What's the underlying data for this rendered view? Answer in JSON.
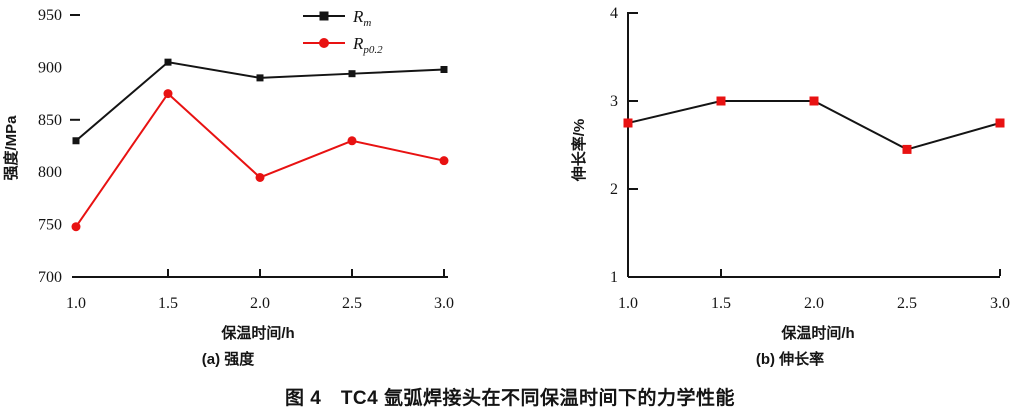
{
  "figure_caption": "图 4　TC4 氩弧焊接头在不同保温时间下的力学性能",
  "chart_data": [
    {
      "id": "a",
      "type": "line",
      "sub_caption": "(a) 强度",
      "xlabel": "保温时间/h",
      "ylabel": "强度/MPa",
      "x": [
        1.0,
        1.5,
        2.0,
        2.5,
        3.0
      ],
      "x_tick_labels": [
        "1.0",
        "1.5",
        "2.0",
        "2.5",
        "3.0"
      ],
      "x_tick_marks": [
        1.5,
        2.0,
        2.5,
        3.0
      ],
      "y_ticks": [
        700,
        750,
        800,
        850,
        900,
        950
      ],
      "y_dash_marks": [
        850,
        950
      ],
      "ylim": [
        700,
        950
      ],
      "xlim": [
        1.0,
        3.0
      ],
      "legend_position": "top-right-inside",
      "grid": false,
      "series": [
        {
          "label_base": "R",
          "label_sub": "m",
          "line_color": "#141414",
          "marker": "square",
          "marker_color": "#141414",
          "marker_size": 7,
          "values": [
            830,
            905,
            890,
            894,
            898
          ]
        },
        {
          "label_base": "R",
          "label_sub": "p0.2",
          "line_color": "#e81212",
          "marker": "circle",
          "marker_color": "#e81212",
          "marker_size": 9,
          "values": [
            748,
            875,
            795,
            830,
            811
          ]
        }
      ]
    },
    {
      "id": "b",
      "type": "line",
      "sub_caption": "(b) 伸长率",
      "xlabel": "保温时间/h",
      "ylabel": "伸长率/%",
      "x": [
        1.0,
        1.5,
        2.0,
        2.5,
        3.0
      ],
      "x_tick_labels": [
        "1.0",
        "1.5",
        "2.0",
        "2.5",
        "3.0"
      ],
      "x_tick_marks": [
        1.5,
        3.0
      ],
      "y_ticks": [
        1,
        2,
        3,
        4
      ],
      "ylim": [
        1,
        4
      ],
      "xlim": [
        1.0,
        3.0
      ],
      "grid": false,
      "series": [
        {
          "name": "伸长率",
          "line_color": "#141414",
          "marker": "square",
          "marker_color": "#e81212",
          "marker_size": 9,
          "values": [
            2.75,
            3.0,
            3.0,
            2.45,
            2.75
          ]
        }
      ]
    }
  ]
}
